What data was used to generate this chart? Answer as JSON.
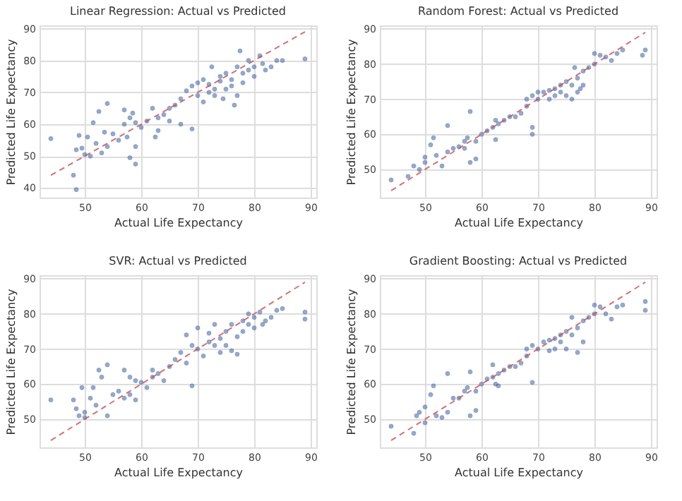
{
  "chart_data": [
    {
      "type": "scatter",
      "title": "Linear Regression: Actual vs Predicted",
      "xlabel": "Actual Life Expectancy",
      "ylabel": "Predicted Life Expectancy",
      "xlim": [
        42,
        91
      ],
      "xticks": [
        50,
        60,
        70,
        80,
        90
      ],
      "ylim": [
        37,
        91
      ],
      "yticks": [
        40,
        50,
        60,
        70,
        80,
        90
      ],
      "grid": true,
      "series": [
        {
          "type": "scatter",
          "marker": "circle",
          "color": "#4c72b0",
          "x": [
            44,
            48,
            48.5,
            48.5,
            49,
            49.5,
            50,
            50.5,
            51,
            51.5,
            52,
            52.5,
            53,
            53.5,
            54,
            54,
            55,
            56,
            57,
            57,
            57.5,
            58,
            58,
            58.5,
            59,
            59,
            59,
            60,
            61,
            62,
            62.5,
            63,
            63,
            64,
            65,
            65,
            66,
            67,
            67,
            68,
            69,
            69,
            70,
            70,
            71,
            71,
            72,
            72,
            72.5,
            73,
            73,
            74,
            74,
            74.5,
            75,
            75,
            76,
            76,
            76.5,
            77,
            77,
            77.5,
            78,
            78,
            79,
            79,
            80,
            80,
            81,
            81.5,
            82,
            83,
            84,
            85,
            89
          ],
          "values": [
            55.5,
            44,
            39.5,
            52,
            56.5,
            52.5,
            50.5,
            56,
            50,
            60.5,
            54,
            64,
            51,
            57.5,
            53,
            66.5,
            57,
            55,
            60,
            64.5,
            56,
            49.5,
            62,
            63.5,
            47.5,
            53,
            60.5,
            59,
            61,
            65,
            56,
            62,
            58,
            63,
            65,
            61,
            66,
            68,
            60,
            70.5,
            58.5,
            72,
            69,
            73,
            67,
            74,
            70,
            72.5,
            78,
            71,
            69,
            73.5,
            75,
            68,
            71,
            76,
            72,
            74,
            66,
            78,
            69,
            83,
            76,
            73,
            77,
            80,
            75,
            78,
            81.5,
            79,
            77,
            78,
            80,
            80,
            80.5
          ]
        },
        {
          "type": "line",
          "color": "#c44e52",
          "line_style": "dashed",
          "x": [
            44,
            89
          ],
          "values": [
            44,
            89
          ]
        }
      ]
    },
    {
      "type": "scatter",
      "title": "Random Forest: Actual vs Predicted",
      "xlabel": "Actual Life Expectancy",
      "ylabel": "Predicted Life Expectancy",
      "xlim": [
        42,
        91
      ],
      "xticks": [
        50,
        60,
        70,
        80,
        90
      ],
      "ylim": [
        42,
        91
      ],
      "yticks": [
        50,
        60,
        70,
        80,
        90
      ],
      "grid": true,
      "series": [
        {
          "type": "scatter",
          "marker": "circle",
          "color": "#4c72b0",
          "x": [
            44,
            47,
            48,
            49,
            50,
            50,
            51,
            51.5,
            52,
            53,
            54,
            54,
            55,
            56,
            57,
            57,
            57.5,
            58,
            58,
            59,
            59,
            60,
            61,
            62,
            62.5,
            62.5,
            63,
            64,
            65,
            66,
            67,
            68,
            68,
            69,
            69,
            69,
            70,
            70,
            71,
            72,
            72,
            73,
            73,
            74,
            74,
            75,
            75,
            76,
            76,
            76.5,
            77,
            77,
            77.5,
            78,
            78,
            79,
            80,
            80,
            81,
            82,
            83,
            84,
            85,
            88.5,
            89
          ],
          "values": [
            47,
            48,
            51,
            50,
            52,
            53.5,
            57,
            59,
            54,
            51,
            62.5,
            55,
            56,
            56.5,
            58,
            56,
            59,
            66.5,
            52,
            53,
            58,
            60,
            61,
            62,
            58.5,
            64,
            63,
            64,
            65,
            65,
            66,
            68,
            70,
            62,
            60,
            71,
            70,
            72,
            72,
            72.5,
            70,
            73,
            71,
            74,
            72,
            75,
            71,
            74,
            70,
            79,
            76,
            72,
            73,
            78,
            74,
            79,
            80,
            83,
            82.5,
            82,
            81,
            83,
            84,
            82.5,
            84
          ]
        },
        {
          "type": "line",
          "color": "#c44e52",
          "line_style": "dashed",
          "x": [
            44,
            89
          ],
          "values": [
            44,
            89
          ]
        }
      ]
    },
    {
      "type": "scatter",
      "title": "SVR: Actual vs Predicted",
      "xlabel": "Actual Life Expectancy",
      "ylabel": "Predicted Life Expectancy",
      "xlim": [
        42,
        91
      ],
      "xticks": [
        50,
        60,
        70,
        80,
        90
      ],
      "ylim": [
        42,
        91
      ],
      "yticks": [
        50,
        60,
        70,
        80,
        90
      ],
      "grid": true,
      "series": [
        {
          "type": "scatter",
          "marker": "circle",
          "color": "#4c72b0",
          "x": [
            44,
            48,
            48.5,
            49,
            49.5,
            50,
            50,
            51,
            51.5,
            52,
            52.5,
            53,
            54,
            54,
            55,
            56,
            57,
            57,
            58,
            58,
            59,
            59,
            60,
            61,
            62,
            62,
            63,
            64,
            65,
            66,
            67,
            68,
            68,
            69,
            69,
            70,
            70,
            71,
            72,
            72,
            73,
            73,
            74,
            74,
            75,
            75,
            76,
            76,
            77,
            77,
            78,
            78,
            79,
            79,
            80,
            80,
            81,
            81.5,
            82,
            83,
            84,
            85,
            89,
            89
          ],
          "values": [
            55.5,
            55.5,
            53,
            51,
            59,
            50.5,
            52,
            56,
            59,
            54,
            64,
            62,
            65.5,
            51,
            57,
            58,
            64,
            56,
            57,
            62,
            55.5,
            61,
            60.5,
            59,
            64,
            62,
            63,
            61,
            65,
            67,
            69,
            74,
            66,
            59.5,
            71,
            70,
            76,
            68,
            72,
            74.5,
            71,
            77,
            73,
            69,
            75,
            71,
            69.5,
            77,
            73.5,
            68.5,
            78,
            75,
            77,
            80,
            79,
            76,
            80.5,
            77,
            78,
            79,
            81,
            81.5,
            80.5,
            78.5
          ]
        },
        {
          "type": "line",
          "color": "#c44e52",
          "line_style": "dashed",
          "x": [
            44,
            89
          ],
          "values": [
            44,
            89
          ]
        }
      ]
    },
    {
      "type": "scatter",
      "title": "Gradient Boosting: Actual vs Predicted",
      "xlabel": "Actual Life Expectancy",
      "ylabel": "Predicted Life Expectancy",
      "xlim": [
        42,
        91
      ],
      "xticks": [
        50,
        60,
        70,
        80,
        90
      ],
      "ylim": [
        42,
        91
      ],
      "yticks": [
        50,
        60,
        70,
        80,
        90
      ],
      "grid": true,
      "series": [
        {
          "type": "scatter",
          "marker": "circle",
          "color": "#4c72b0",
          "x": [
            44,
            48,
            48.5,
            49,
            50,
            50,
            51,
            51.5,
            52,
            53,
            54,
            54,
            55,
            56,
            57,
            57.5,
            58,
            58,
            59,
            59,
            60,
            61,
            62,
            62,
            62.5,
            63,
            63,
            64,
            65,
            66,
            67,
            68,
            68,
            69,
            69,
            70,
            71,
            72,
            72,
            73,
            73,
            74,
            74,
            75,
            75,
            76,
            76,
            77,
            77,
            78,
            78,
            79,
            80,
            80,
            81,
            82,
            83,
            84,
            85,
            89,
            89
          ],
          "values": [
            48,
            46,
            51,
            52,
            49,
            53.5,
            57,
            59.5,
            51,
            50.5,
            63,
            52,
            56,
            56,
            58,
            59,
            63.5,
            51,
            52.5,
            58,
            60,
            61.5,
            62,
            65.5,
            60,
            59.5,
            63,
            64,
            65,
            65,
            66,
            68,
            70,
            60.5,
            71,
            70,
            72,
            72.5,
            69.5,
            73,
            70,
            74,
            72,
            75,
            70,
            74,
            79,
            69,
            76,
            72,
            78,
            79,
            80,
            82.5,
            82,
            80,
            78.5,
            82,
            82.5,
            83.5,
            81
          ]
        },
        {
          "type": "line",
          "color": "#c44e52",
          "line_style": "dashed",
          "x": [
            44,
            89
          ],
          "values": [
            44,
            89
          ]
        }
      ]
    }
  ]
}
